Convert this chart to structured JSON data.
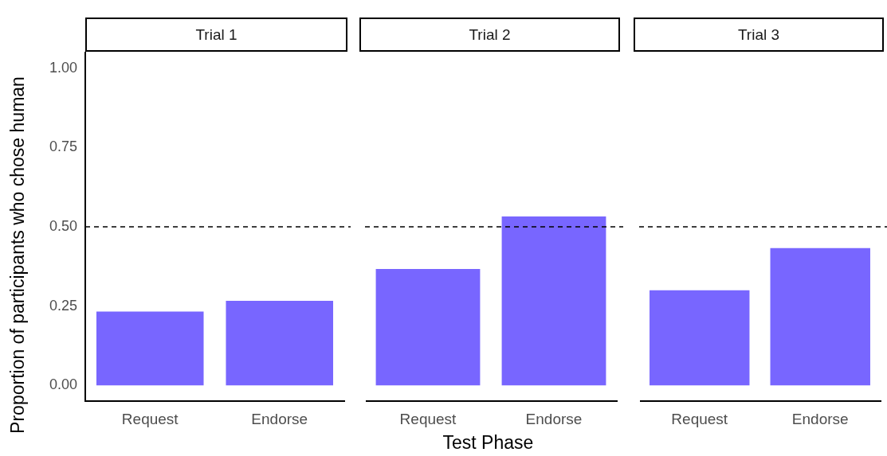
{
  "chart_data": [
    {
      "type": "bar",
      "title": "Trial 1",
      "ylabel": "Proportion of participants who chose human",
      "categories": [
        "Request",
        "Endorse"
      ],
      "values": [
        0.233,
        0.267
      ],
      "color": "#7866ff",
      "ylim": [
        -0.05,
        1.05
      ],
      "yticks": [
        {
          "value": 0,
          "label": "0.00"
        },
        {
          "value": 0.25,
          "label": "0.25"
        },
        {
          "value": 0.5,
          "label": "0.50"
        },
        {
          "value": 0.75,
          "label": "0.75"
        },
        {
          "value": 1,
          "label": "1.00"
        }
      ],
      "grid": false,
      "legend": false,
      "ref_lines": [
        {
          "axis": "y",
          "value": 0.5,
          "color": "#000000",
          "line_style": "dashed"
        }
      ]
    },
    {
      "type": "bar",
      "title": "Trial 2",
      "xlabel": "Test Phase",
      "categories": [
        "Request",
        "Endorse"
      ],
      "values": [
        0.367,
        0.533
      ],
      "color": "#7866ff",
      "ylim": [
        -0.05,
        1.05
      ],
      "grid": false,
      "legend": false,
      "tick_labels": "x",
      "ref_lines": [
        {
          "axis": "y",
          "value": 0.5,
          "color": "#000000",
          "line_style": "dashed"
        }
      ]
    },
    {
      "type": "bar",
      "title": "Trial 3",
      "categories": [
        "Request",
        "Endorse"
      ],
      "values": [
        0.3,
        0.433
      ],
      "color": "#7866ff",
      "ylim": [
        -0.05,
        1.05
      ],
      "grid": false,
      "legend": false,
      "tick_labels": "x",
      "ref_lines": [
        {
          "axis": "y",
          "value": 0.5,
          "color": "#000000",
          "line_style": "dashed"
        }
      ]
    }
  ]
}
